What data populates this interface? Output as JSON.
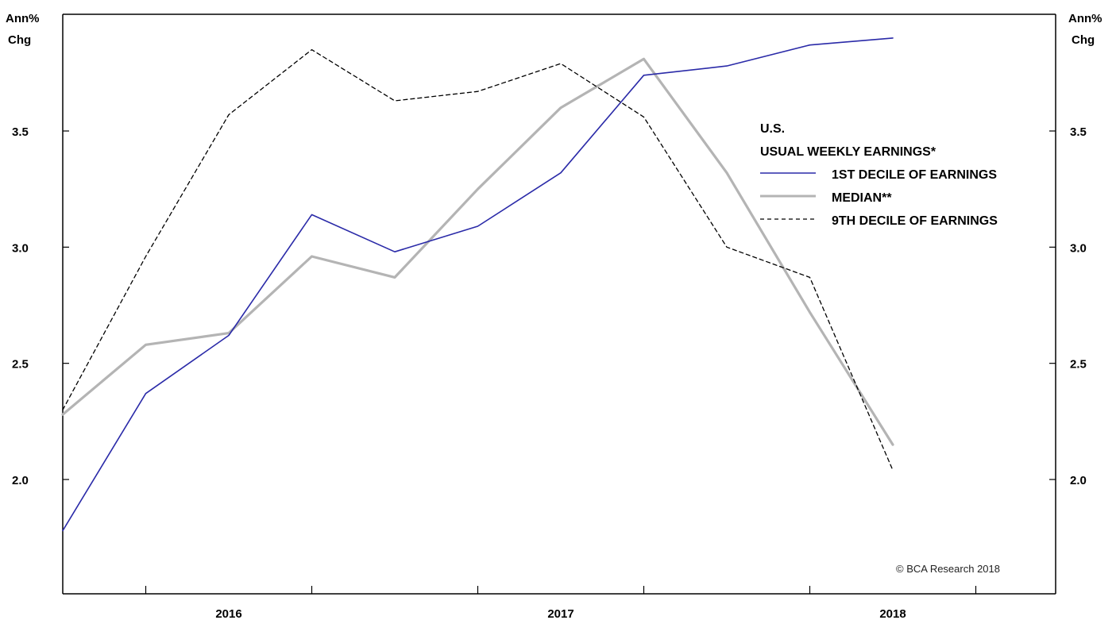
{
  "chart_data": {
    "type": "line",
    "title": "",
    "y_unit_left": [
      "Ann%",
      "Chg"
    ],
    "y_unit_right": [
      "Ann%",
      "Chg"
    ],
    "x_tick_labels": [
      "2016",
      "2017",
      "2018"
    ],
    "y_ticks": [
      "2.0",
      "2.5",
      "3.0",
      "3.5"
    ],
    "ylim": [
      1.55,
      4.05
    ],
    "xlim": [
      "2015Q3",
      "2018Q2"
    ],
    "x": [
      "2015Q3",
      "2015Q4",
      "2016Q1",
      "2016Q2",
      "2016Q3",
      "2016Q4",
      "2017Q1",
      "2017Q2",
      "2017Q3",
      "2017Q4",
      "2018Q1"
    ],
    "legend": {
      "title_lines": [
        "U.S.",
        "USUAL WEEKLY EARNINGS*"
      ],
      "placement": "right, upper-middle"
    },
    "series": [
      {
        "name": "1ST DECILE OF EARNINGS",
        "color": "#2a2aa8",
        "style": "solid",
        "values": [
          1.78,
          2.37,
          2.62,
          3.14,
          2.98,
          3.09,
          3.32,
          3.74,
          3.78,
          3.87,
          3.9
        ]
      },
      {
        "name": "MEDIAN**",
        "color": "#b4b4b4",
        "style": "solid-thick",
        "values": [
          2.28,
          2.58,
          2.63,
          2.96,
          2.87,
          3.25,
          3.6,
          3.81,
          3.32,
          2.72,
          2.15
        ]
      },
      {
        "name": "9TH DECILE OF EARNINGS",
        "color": "#000000",
        "style": "dashed",
        "values": [
          2.3,
          2.96,
          3.57,
          3.85,
          3.63,
          3.67,
          3.79,
          3.56,
          3.0,
          2.87,
          2.04
        ]
      }
    ],
    "credit": "© BCA Research 2018"
  }
}
